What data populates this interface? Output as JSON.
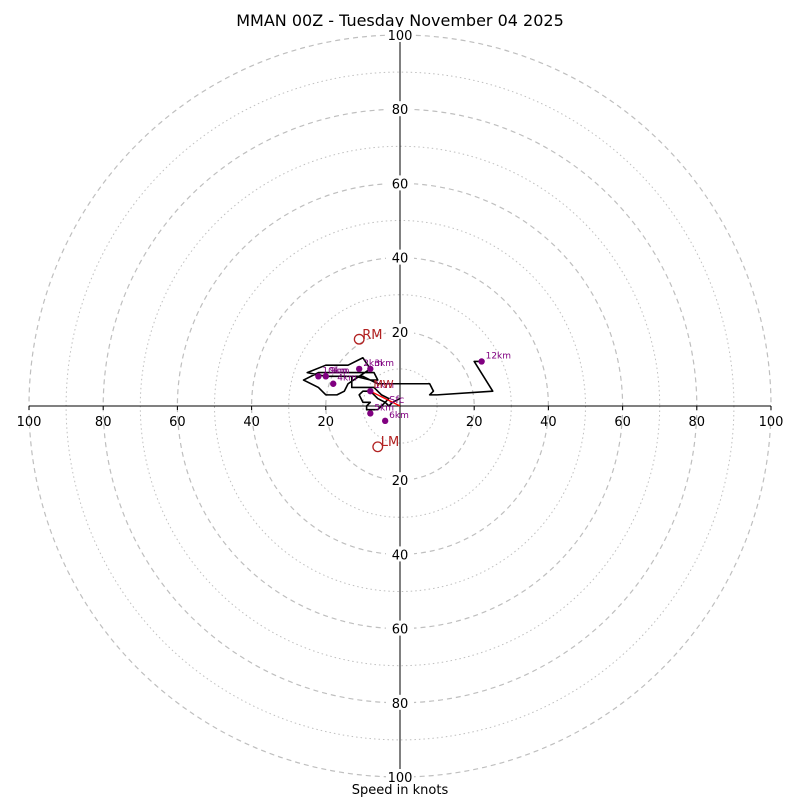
{
  "chart_data": {
    "type": "hodograph",
    "title": "MMAN 00Z - Tuesday November 04 2025",
    "xlabel": "Speed in knots",
    "units": "knots",
    "range": [
      -100,
      100
    ],
    "ring_interval": 20,
    "minor_ring_interval": 10,
    "tick_labels": [
      "100",
      "80",
      "60",
      "40",
      "20",
      "20",
      "40",
      "60",
      "80",
      "100"
    ],
    "tick_values": [
      -100,
      -80,
      -60,
      -40,
      -20,
      20,
      40,
      60,
      80,
      100
    ],
    "trace": [
      [
        0,
        2
      ],
      [
        -2,
        1
      ],
      [
        -3,
        0
      ],
      [
        -4,
        1
      ],
      [
        -6,
        2
      ],
      [
        -7,
        3
      ],
      [
        -8,
        4
      ],
      [
        -10,
        4
      ],
      [
        -11,
        3
      ],
      [
        -10,
        1
      ],
      [
        -8,
        1
      ],
      [
        -9,
        0
      ],
      [
        -9,
        -1
      ],
      [
        -6,
        -1
      ],
      [
        -5,
        0
      ],
      [
        -4,
        1
      ],
      [
        -3,
        2
      ],
      [
        -5,
        3
      ],
      [
        -6,
        4
      ],
      [
        -7,
        5
      ],
      [
        -9,
        5
      ],
      [
        -11,
        5
      ],
      [
        -13,
        5
      ],
      [
        -13,
        8
      ],
      [
        -10,
        8
      ],
      [
        -8,
        7
      ],
      [
        -6,
        7
      ],
      [
        -7,
        9
      ],
      [
        -12,
        9
      ],
      [
        -16,
        9
      ],
      [
        -22,
        9
      ],
      [
        -26,
        7
      ],
      [
        -22,
        5
      ],
      [
        -20,
        3
      ],
      [
        -17,
        3
      ],
      [
        -15,
        4
      ],
      [
        -14,
        6
      ],
      [
        -11,
        8
      ],
      [
        -8,
        10
      ],
      [
        -10,
        13
      ],
      [
        -14,
        11
      ],
      [
        -20,
        11
      ],
      [
        -25,
        9
      ],
      [
        -20,
        8
      ],
      [
        -12,
        8
      ],
      [
        -8,
        7
      ],
      [
        -6,
        6
      ],
      [
        -3,
        6
      ],
      [
        8,
        6
      ],
      [
        9,
        4
      ],
      [
        8,
        3
      ],
      [
        10,
        3
      ],
      [
        25,
        4
      ],
      [
        20,
        12
      ],
      [
        22,
        12
      ]
    ],
    "heights": [
      {
        "label": "1km",
        "u": -8,
        "v": 4
      },
      {
        "label": "2km",
        "u": -11,
        "v": 10
      },
      {
        "label": "3km",
        "u": -8,
        "v": 10
      },
      {
        "label": "4km",
        "u": -18,
        "v": 6
      },
      {
        "label": "5km",
        "u": -8,
        "v": -2
      },
      {
        "label": "6km",
        "u": -4,
        "v": -4
      },
      {
        "label": "9km",
        "u": -20,
        "v": 8
      },
      {
        "label": "10km",
        "u": -22,
        "v": 8
      },
      {
        "label": "12km",
        "u": 22,
        "v": 12
      }
    ],
    "storm_motion": [
      {
        "label": "RM",
        "u": -11,
        "v": 18
      },
      {
        "label": "LM",
        "u": -6,
        "v": -11
      }
    ],
    "mean_wind": {
      "label": "MW",
      "u": -8,
      "v": 4
    },
    "surface": {
      "label": "Sfc",
      "u": 0,
      "v": 0
    },
    "trace_color": "#000000",
    "point_color": "#800080",
    "storm_color": "#b22222",
    "shear_color": "#ff0000",
    "grid_color": "#bfbfbf"
  }
}
